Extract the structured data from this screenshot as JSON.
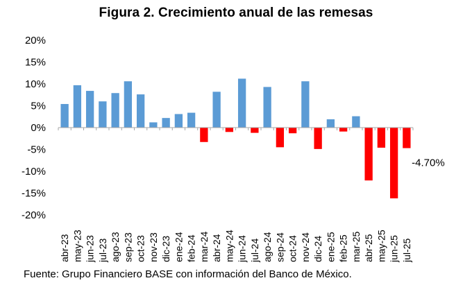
{
  "chart_data": {
    "type": "bar",
    "title": "Figura 2. Crecimiento anual de las remesas",
    "xlabel": "",
    "ylabel": "",
    "ylim": [
      -20,
      20
    ],
    "yticks": [
      20,
      15,
      10,
      5,
      0,
      -5,
      -10,
      -15,
      -20
    ],
    "ytick_labels": [
      "20%",
      "15%",
      "10%",
      "5%",
      "0%",
      "-5%",
      "-10%",
      "-15%",
      "-20%"
    ],
    "grid": false,
    "legend": "none",
    "categories": [
      "abr-23",
      "may-23",
      "jun-23",
      "jul-23",
      "ago-23",
      "sep-23",
      "oct-23",
      "nov-23",
      "dic-23",
      "ene-24",
      "feb-24",
      "mar-24",
      "abr-24",
      "may-24",
      "jun-24",
      "jul-24",
      "ago-24",
      "sep-24",
      "oct-24",
      "nov-24",
      "dic-24",
      "ene-25",
      "feb-25",
      "mar-25",
      "abr-25",
      "may-25",
      "jun-25",
      "jul-25"
    ],
    "values": [
      5.4,
      9.7,
      8.4,
      6.0,
      7.9,
      10.6,
      7.6,
      1.2,
      2.2,
      3.1,
      3.4,
      -3.3,
      8.2,
      -1.0,
      11.2,
      -1.2,
      9.3,
      -4.5,
      -1.3,
      10.6,
      -4.9,
      1.9,
      -0.9,
      2.6,
      -12.1,
      -4.6,
      -16.2,
      -4.7
    ],
    "colors": {
      "positive": "#5B9BD5",
      "negative": "#FF0000",
      "axis": "#A6A6A6"
    },
    "annotation": "-4.70%"
  },
  "footer": {
    "source": "Fuente: Grupo Financiero BASE con información del Banco de México."
  }
}
